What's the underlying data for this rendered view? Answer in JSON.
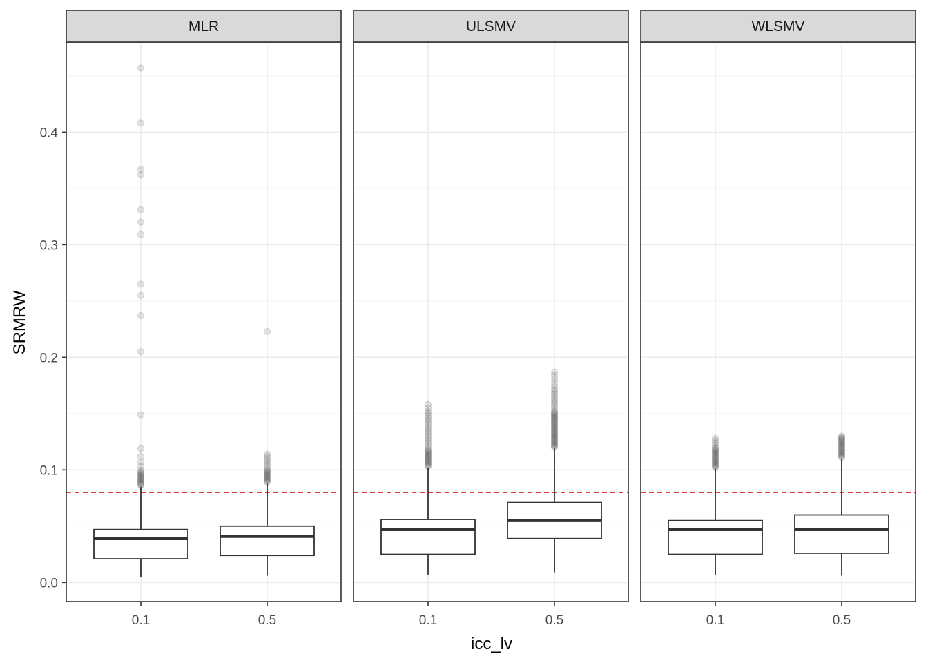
{
  "chart_data": {
    "type": "boxplot",
    "facet_variable": "estimator",
    "xlabel": "icc_lv",
    "ylabel": "SRMRW",
    "categories": [
      "0.1",
      "0.5"
    ],
    "ylim": [
      -0.017,
      0.48
    ],
    "yticks": [
      0.0,
      0.1,
      0.2,
      0.3,
      0.4
    ],
    "ytick_labels": [
      "0.0",
      "0.1",
      "0.2",
      "0.3",
      "0.4"
    ],
    "reference_line": {
      "y": 0.08,
      "style": "dashed",
      "color": "#cc0000"
    },
    "grid": true,
    "colors": {
      "strip_fill": "#d9d9d9",
      "box_line": "#333333",
      "outlier": "#333333",
      "grid_major": "#ebebeb",
      "panel_border": "#333333"
    },
    "facets": [
      {
        "title": "MLR",
        "boxes": [
          {
            "x": "0.1",
            "min": 0.005,
            "q1": 0.021,
            "median": 0.039,
            "q3": 0.047,
            "max": 0.085,
            "outliers": [
              0.086,
              0.087,
              0.088,
              0.089,
              0.09,
              0.091,
              0.092,
              0.093,
              0.094,
              0.095,
              0.096,
              0.097,
              0.098,
              0.1,
              0.103,
              0.107,
              0.112,
              0.119,
              0.149,
              0.205,
              0.237,
              0.255,
              0.265,
              0.309,
              0.32,
              0.331,
              0.362,
              0.367,
              0.408,
              0.457
            ]
          },
          {
            "x": "0.5",
            "min": 0.006,
            "q1": 0.024,
            "median": 0.041,
            "q3": 0.05,
            "max": 0.088,
            "outliers": [
              0.089,
              0.09,
              0.091,
              0.092,
              0.093,
              0.094,
              0.095,
              0.096,
              0.097,
              0.098,
              0.099,
              0.1,
              0.102,
              0.104,
              0.106,
              0.108,
              0.11,
              0.112,
              0.114,
              0.223
            ]
          }
        ]
      },
      {
        "title": "ULSMV",
        "boxes": [
          {
            "x": "0.1",
            "min": 0.007,
            "q1": 0.025,
            "median": 0.047,
            "q3": 0.056,
            "max": 0.102,
            "outliers": [
              0.103,
              0.104,
              0.105,
              0.106,
              0.107,
              0.108,
              0.109,
              0.11,
              0.111,
              0.112,
              0.113,
              0.114,
              0.115,
              0.116,
              0.117,
              0.118,
              0.12,
              0.122,
              0.124,
              0.126,
              0.128,
              0.13,
              0.132,
              0.134,
              0.136,
              0.138,
              0.14,
              0.142,
              0.144,
              0.146,
              0.148,
              0.15,
              0.152,
              0.155,
              0.158
            ]
          },
          {
            "x": "0.5",
            "min": 0.009,
            "q1": 0.039,
            "median": 0.055,
            "q3": 0.071,
            "max": 0.119,
            "outliers": [
              0.12,
              0.121,
              0.122,
              0.123,
              0.124,
              0.125,
              0.126,
              0.127,
              0.128,
              0.129,
              0.13,
              0.131,
              0.132,
              0.133,
              0.134,
              0.135,
              0.136,
              0.137,
              0.138,
              0.139,
              0.14,
              0.141,
              0.142,
              0.143,
              0.144,
              0.145,
              0.146,
              0.147,
              0.148,
              0.149,
              0.15,
              0.151,
              0.152,
              0.154,
              0.156,
              0.158,
              0.16,
              0.162,
              0.164,
              0.166,
              0.168,
              0.17,
              0.172,
              0.175,
              0.178,
              0.181,
              0.184,
              0.187
            ]
          }
        ]
      },
      {
        "title": "WLSMV",
        "boxes": [
          {
            "x": "0.1",
            "min": 0.007,
            "q1": 0.025,
            "median": 0.047,
            "q3": 0.055,
            "max": 0.101,
            "outliers": [
              0.102,
              0.103,
              0.104,
              0.105,
              0.106,
              0.107,
              0.108,
              0.109,
              0.11,
              0.111,
              0.112,
              0.113,
              0.114,
              0.115,
              0.116,
              0.117,
              0.118,
              0.119,
              0.12,
              0.122,
              0.124,
              0.126,
              0.128
            ]
          },
          {
            "x": "0.5",
            "min": 0.006,
            "q1": 0.026,
            "median": 0.047,
            "q3": 0.06,
            "max": 0.11,
            "outliers": [
              0.111,
              0.112,
              0.113,
              0.114,
              0.115,
              0.116,
              0.117,
              0.118,
              0.119,
              0.12,
              0.121,
              0.122,
              0.123,
              0.124,
              0.125,
              0.126,
              0.127,
              0.128,
              0.129,
              0.13
            ]
          }
        ]
      }
    ]
  }
}
